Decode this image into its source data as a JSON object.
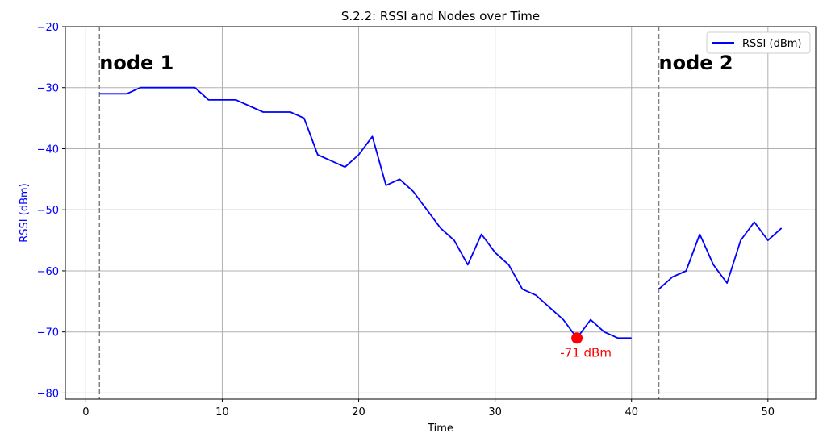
{
  "chart_data": {
    "type": "line",
    "title": "S.2.2: RSSI and Nodes over Time",
    "xlabel": "Time",
    "ylabel": "RSSI (dBm)",
    "xlim": [
      -1.5,
      53.5
    ],
    "ylim": [
      -81,
      -20
    ],
    "xticks": [
      0,
      10,
      20,
      30,
      40,
      50
    ],
    "yticks": [
      -20,
      -30,
      -40,
      -50,
      -60,
      -70,
      -80
    ],
    "grid": true,
    "legend_position": "top-right",
    "series": [
      {
        "name": "RSSI (dBm)",
        "color": "#0000ff",
        "segments": [
          {
            "x": [
              1,
              2,
              3,
              4,
              5,
              6,
              7,
              8,
              9,
              10,
              11,
              12,
              13,
              14,
              15,
              16,
              17,
              18,
              19,
              20,
              21,
              22,
              23,
              24,
              25,
              26,
              27,
              28,
              29,
              30,
              31,
              32,
              33,
              34,
              35,
              36,
              37,
              38,
              39,
              40
            ],
            "y": [
              -31,
              -31,
              -31,
              -30,
              -30,
              -30,
              -30,
              -30,
              -32,
              -32,
              -32,
              -33,
              -34,
              -34,
              -34,
              -35,
              -41,
              -42,
              -43,
              -41,
              -38,
              -46,
              -45,
              -47,
              -50,
              -53,
              -55,
              -59,
              -54,
              -57,
              -59,
              -63,
              -64,
              -66,
              -68,
              -71,
              -68,
              -70,
              -71,
              -71
            ]
          },
          {
            "x": [
              42,
              43,
              44,
              45,
              46,
              47,
              48,
              49,
              50,
              51
            ],
            "y": [
              -63,
              -61,
              -60,
              -54,
              -59,
              -62,
              -55,
              -52,
              -55,
              -53
            ]
          }
        ]
      }
    ],
    "nodes": [
      {
        "x": 1,
        "label": "node 1"
      },
      {
        "x": 42,
        "label": "node 2"
      }
    ],
    "highlight": {
      "x": 36,
      "y": -71,
      "label": "-71 dBm",
      "color": "#ff0000"
    },
    "colors": {
      "axis_ticks_y": "#0000ff",
      "grid": "#b0b0b0",
      "node_line": "#808080"
    }
  }
}
